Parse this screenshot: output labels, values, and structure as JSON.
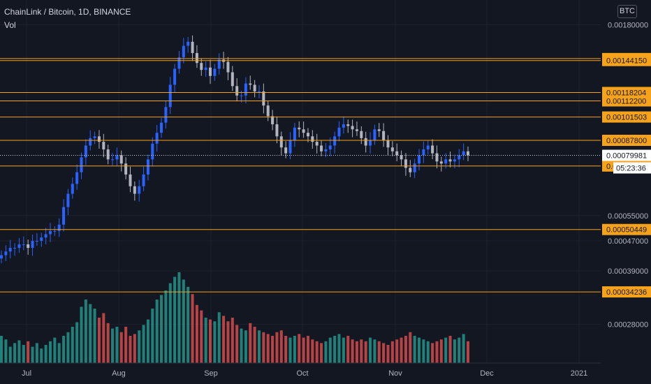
{
  "header": {
    "title": "ChainLink / Bitcoin, 1D, BINANCE",
    "indicator": "Vol",
    "currency": "BTC"
  },
  "colors": {
    "background": "#131722",
    "grid": "#1e222d",
    "up": "#2962ff",
    "down": "#b2b5be",
    "level": "#f7a21b",
    "vol_up": "#26a69a",
    "vol_down": "#ef5350"
  },
  "chart_data": {
    "type": "candlestick",
    "symbol": "ChainLink / Bitcoin, 1D, BINANCE",
    "ylim": [
      0.00022,
      0.0021
    ],
    "y_scale": "log",
    "y_ticks": [
      "0.00180000",
      "0.00055000",
      "0.00047000",
      "0.00039000",
      "0.00028000"
    ],
    "x_ticks": [
      "Jul",
      "Aug",
      "Sep",
      "Oct",
      "Nov",
      "Dec",
      "2021"
    ],
    "horizontal_levels": [
      "0.00145958",
      "0.00144150",
      "0.00118204",
      "0.00112200",
      "0.00101503",
      "0.00087800",
      "0.00074850",
      "0.00050449",
      "0.00034236"
    ],
    "last_price": "0.00079981",
    "countdown": "05:23:36",
    "grid": true,
    "candles_close": [
      0.00043,
      0.00044,
      0.00045,
      0.00045,
      0.00046,
      0.00046,
      0.00045,
      0.00047,
      0.00047,
      0.00048,
      0.00049,
      0.0005,
      0.0005,
      0.00052,
      0.00058,
      0.00063,
      0.00067,
      0.00072,
      0.00079,
      0.00085,
      0.00089,
      0.0009,
      0.00087,
      0.00083,
      0.00078,
      0.00078,
      0.0008,
      0.00076,
      0.00071,
      0.00066,
      0.00063,
      0.00066,
      0.00071,
      0.00078,
      0.00086,
      0.00092,
      0.00098,
      0.00108,
      0.00124,
      0.00137,
      0.00147,
      0.00158,
      0.00162,
      0.00151,
      0.00142,
      0.00136,
      0.00138,
      0.00131,
      0.00137,
      0.00145,
      0.00143,
      0.00134,
      0.00123,
      0.00116,
      0.00116,
      0.00125,
      0.00124,
      0.00119,
      0.00119,
      0.00109,
      0.00102,
      0.00097,
      0.0009,
      0.00084,
      0.00081,
      0.00088,
      0.00095,
      0.00094,
      0.00092,
      0.0009,
      0.00087,
      0.00085,
      0.00082,
      0.00083,
      0.00085,
      0.0009,
      0.00095,
      0.00097,
      0.00096,
      0.00094,
      0.00093,
      0.00089,
      0.00085,
      0.00088,
      0.00094,
      0.00093,
      0.00088,
      0.00084,
      0.00082,
      0.0008,
      0.00078,
      0.00074,
      0.00072,
      0.00076,
      0.0008,
      0.00083,
      0.00085,
      0.00081,
      0.00077,
      0.00076,
      0.00078,
      0.00077,
      0.00078,
      0.0008,
      0.00082,
      0.0008
    ],
    "volumes": [
      30,
      26,
      18,
      22,
      25,
      20,
      24,
      18,
      22,
      16,
      20,
      24,
      28,
      22,
      30,
      34,
      40,
      45,
      62,
      70,
      65,
      60,
      50,
      55,
      44,
      38,
      40,
      34,
      40,
      30,
      32,
      36,
      42,
      48,
      60,
      70,
      75,
      80,
      88,
      95,
      100,
      92,
      84,
      76,
      64,
      58,
      50,
      48,
      46,
      56,
      52,
      46,
      50,
      42,
      38,
      36,
      44,
      40,
      36,
      34,
      32,
      30,
      34,
      36,
      30,
      28,
      30,
      32,
      28,
      30,
      26,
      24,
      22,
      24,
      28,
      30,
      32,
      28,
      30,
      26,
      24,
      26,
      24,
      28,
      26,
      24,
      22,
      20,
      24,
      26,
      28,
      30,
      34,
      30,
      28,
      26,
      24,
      22,
      24,
      26,
      28,
      30,
      26,
      28,
      32,
      24
    ]
  }
}
